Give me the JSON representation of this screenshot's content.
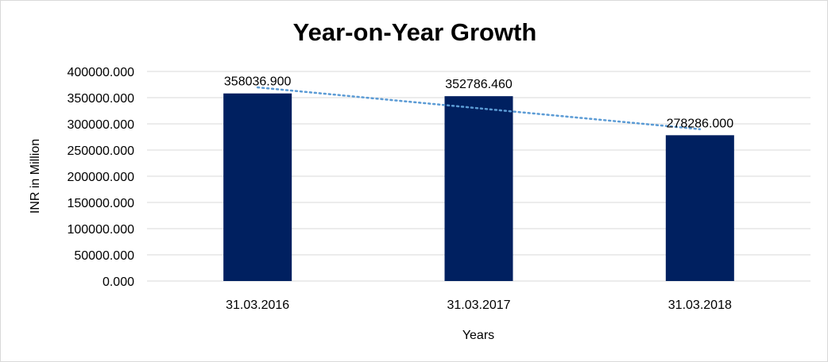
{
  "chart_data": {
    "type": "bar",
    "title": "Year-on-Year Growth",
    "xlabel": "Years",
    "ylabel": "INR in Million",
    "categories": [
      "31.03.2016",
      "31.03.2017",
      "31.03.2018"
    ],
    "values": [
      358036.9,
      352786.46,
      278286.0
    ],
    "data_labels": [
      "358036.900",
      "352786.460",
      "278286.000"
    ],
    "ylim": [
      0,
      400000
    ],
    "yticks": [
      0,
      50000,
      100000,
      150000,
      200000,
      250000,
      300000,
      350000,
      400000
    ],
    "ytick_labels": [
      "0.000",
      "50000.000",
      "100000.000",
      "150000.000",
      "200000.000",
      "250000.000",
      "300000.000",
      "350000.000",
      "400000.000"
    ],
    "grid": true,
    "legend": "none",
    "trendline": "linear",
    "colors": {
      "bar": "#002060",
      "trendline": "#5b9bd5",
      "grid": "#d9d9d9",
      "baseline": "#d9d9d9"
    }
  }
}
